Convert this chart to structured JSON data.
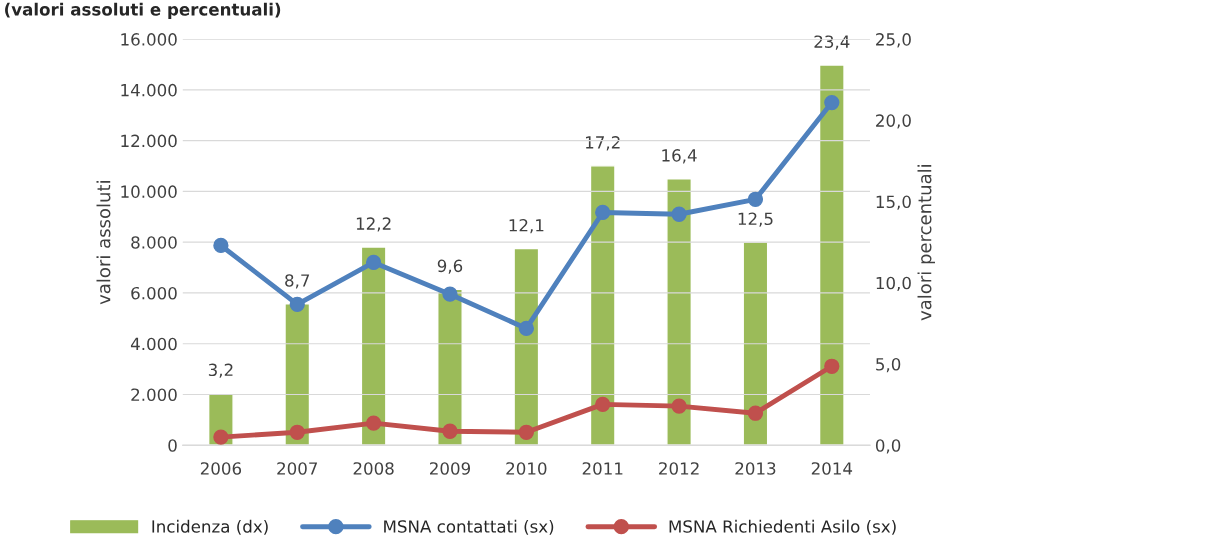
{
  "chart_data": {
    "type": "bar",
    "title": "(valori assoluti e percentuali)",
    "categories": [
      "2006",
      "2007",
      "2008",
      "2009",
      "2010",
      "2011",
      "2012",
      "2013",
      "2014"
    ],
    "ylabel": "valori assoluti",
    "y2label": "valori percentuali",
    "series": [
      {
        "name": "Incidenza (dx)",
        "axis": "y2",
        "color": "#9bbb59",
        "values": [
          3.2,
          8.7,
          12.2,
          9.6,
          12.1,
          17.2,
          16.4,
          12.5,
          23.4
        ],
        "value_labels": [
          "3,2",
          "8,7",
          "12,2",
          "9,6",
          "12,1",
          "17,2",
          "16,4",
          "12,5",
          "23,4"
        ]
      },
      {
        "name": "MSNA contattati (sx)",
        "type": "line",
        "color": "#4f81bd",
        "values": [
          7870,
          5550,
          7200,
          5950,
          4600,
          9170,
          9100,
          9690,
          13500
        ]
      },
      {
        "name": "MSNA Richiedenti Asilo (sx)",
        "type": "line",
        "color": "#c0504d",
        "values": [
          320,
          510,
          870,
          550,
          510,
          1610,
          1540,
          1260,
          3110
        ]
      }
    ],
    "ylim": [
      0,
      16000
    ],
    "yticks": [
      {
        "value": 0,
        "label": "0"
      },
      {
        "value": 2000,
        "label": "2.000"
      },
      {
        "value": 4000,
        "label": "4.000"
      },
      {
        "value": 6000,
        "label": "6.000"
      },
      {
        "value": 8000,
        "label": "8.000"
      },
      {
        "value": 10000,
        "label": "10.000"
      },
      {
        "value": 12000,
        "label": "12.000"
      },
      {
        "value": 14000,
        "label": "14.000"
      },
      {
        "value": 16000,
        "label": "16.000"
      }
    ],
    "y2lim": [
      0,
      25
    ],
    "y2ticks": [
      {
        "value": 0,
        "label": "0,0"
      },
      {
        "value": 5,
        "label": "5,0"
      },
      {
        "value": 10,
        "label": "10,0"
      },
      {
        "value": 15,
        "label": "15,0"
      },
      {
        "value": 20,
        "label": "20,0"
      },
      {
        "value": 25,
        "label": "25,0"
      }
    ],
    "grid": "y",
    "legend": "bottom",
    "marker": "circle",
    "line_style": "solid"
  }
}
